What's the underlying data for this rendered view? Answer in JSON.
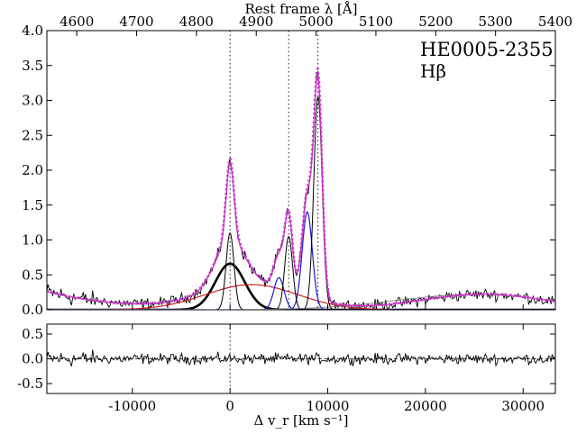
{
  "chart_data": [
    {
      "type": "line",
      "object_name": "HE0005-2355",
      "line_name": "Hβ",
      "top_axis_label": "Rest frame λ [Å]",
      "top_ticks": [
        4600,
        4700,
        4800,
        4900,
        5000,
        5100,
        5200,
        5300,
        5400
      ],
      "top_xlim": [
        4550,
        5400
      ],
      "xlim": [
        -18750,
        33300
      ],
      "ylim": [
        0.0,
        4.0
      ],
      "y_ticks": [
        "0.0",
        "0.5",
        "1.0",
        "1.5",
        "2.0",
        "2.5",
        "3.0",
        "3.5",
        "4.0"
      ],
      "y_tick_values": [
        0,
        0.5,
        1.0,
        1.5,
        2.0,
        2.5,
        3.0,
        3.5,
        4.0
      ],
      "vertical_markers": [
        0,
        6000,
        9000
      ],
      "colors": {
        "data": "#000000",
        "total_fit": "#cc33cc",
        "broad": "#000000",
        "very_broad": "#cc2222",
        "oiii": "#1a1acc",
        "narrow": "#000000",
        "continuum": "#777777"
      },
      "components": [
        {
          "role": "broad_gaussian",
          "center": 0,
          "sigma": 1500,
          "amp": 0.66,
          "color": "#000000",
          "width": 2.6
        },
        {
          "role": "very_broad_gaussian",
          "center": 2200,
          "sigma": 4700,
          "amp": 0.36,
          "color": "#cc2222",
          "width": 1.2
        },
        {
          "role": "oiii_blue_4959",
          "center": 5000,
          "sigma": 520,
          "amp": 0.46,
          "color": "#1a1acc",
          "width": 1.2
        },
        {
          "role": "oiii_blue_5007",
          "center": 7900,
          "sigma": 520,
          "amp": 1.4,
          "color": "#1a1acc",
          "width": 1.2
        },
        {
          "role": "narrow_hb",
          "center": 0,
          "sigma": 400,
          "amp": 1.1,
          "color": "#000000",
          "width": 1.0
        },
        {
          "role": "narrow_4959",
          "center": 6000,
          "sigma": 400,
          "amp": 1.05,
          "color": "#000000",
          "width": 1.0
        },
        {
          "role": "narrow_5007",
          "center": 9000,
          "sigma": 430,
          "amp": 3.05,
          "color": "#000000",
          "width": 1.0
        },
        {
          "role": "feii_continuum",
          "center": 25000,
          "sigma": 8000,
          "amp": 0.22,
          "color": "#777777",
          "width": 0.8
        }
      ],
      "fit_continuum": {
        "left_level": 0.26,
        "left_decay": 7000,
        "right_bump_center": 26000,
        "right_bump_sigma": 6500,
        "right_bump_amp": 0.22
      }
    },
    {
      "type": "line",
      "role": "residuals",
      "xlabel": "Δ v_r [km s⁻¹]",
      "xlim": [
        -18750,
        33300
      ],
      "ylim": [
        -0.7,
        0.7
      ],
      "x_ticks": [
        "-10000",
        "0",
        "10000",
        "20000",
        "30000"
      ],
      "x_tick_values": [
        -10000,
        0,
        10000,
        20000,
        30000
      ],
      "y_ticks": [
        "0.5",
        "0.0",
        "-0.5"
      ],
      "y_tick_values": [
        0.5,
        0.0,
        -0.5
      ],
      "zero_line": 0.0
    }
  ]
}
